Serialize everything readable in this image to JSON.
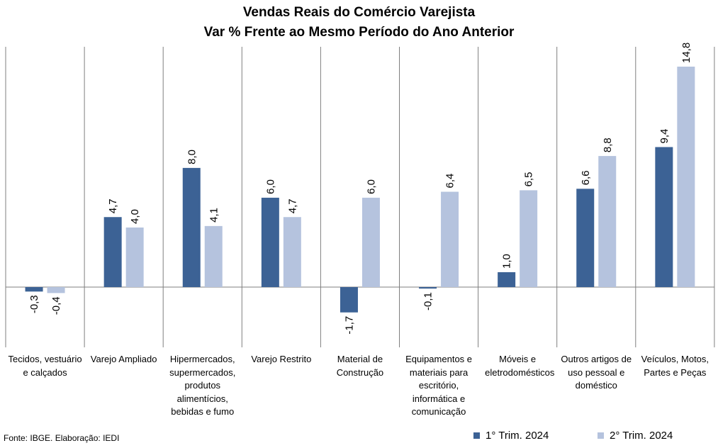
{
  "title_line1": "Vendas Reais do Comércio Varejista",
  "title_line2": "Var % Frente ao Mesmo Período do Ano Anterior",
  "source": "Fonte: IBGE. Elaboração: IEDI",
  "colors": {
    "series1": "#3c6295",
    "series2": "#b5c3de",
    "grid": "#7f7f7f"
  },
  "chart_data": {
    "type": "bar",
    "title": "Vendas Reais do Comércio Varejista — Var % Frente ao Mesmo Período do Ano Anterior",
    "xlabel": "",
    "ylabel": "",
    "ylim": [
      -3.2,
      17.3
    ],
    "legend_position": "bottom-right",
    "grid": false,
    "categories": [
      "Tecidos, vestuário e calçados",
      "Varejo Ampliado",
      "Hipermercados, supermercados, produtos alimentícios, bebidas e fumo",
      "Varejo Restrito",
      "Material de Construção",
      "Equipamentos e materiais para escritório, informática e comunicação",
      "Móveis e eletrodomésticos",
      "Outros artigos de uso pessoal e doméstico",
      "Veículos, Motos, Partes e Peças"
    ],
    "series": [
      {
        "name": "1° Trim. 2024",
        "values": [
          -0.3,
          4.7,
          8.0,
          6.0,
          -1.7,
          -0.1,
          1.0,
          6.6,
          9.4
        ],
        "labels": [
          "-0,3",
          "4,7",
          "8,0",
          "6,0",
          "-1,7",
          "-0,1",
          "1,0",
          "6,6",
          "9,4"
        ]
      },
      {
        "name": "2° Trim. 2024",
        "values": [
          -0.4,
          4.0,
          4.1,
          4.7,
          6.0,
          6.4,
          6.5,
          8.8,
          14.8
        ],
        "labels": [
          "-0,4",
          "4,0",
          "4,1",
          "4,7",
          "6,0",
          "6,4",
          "6,5",
          "8,8",
          "14,8"
        ]
      }
    ]
  }
}
